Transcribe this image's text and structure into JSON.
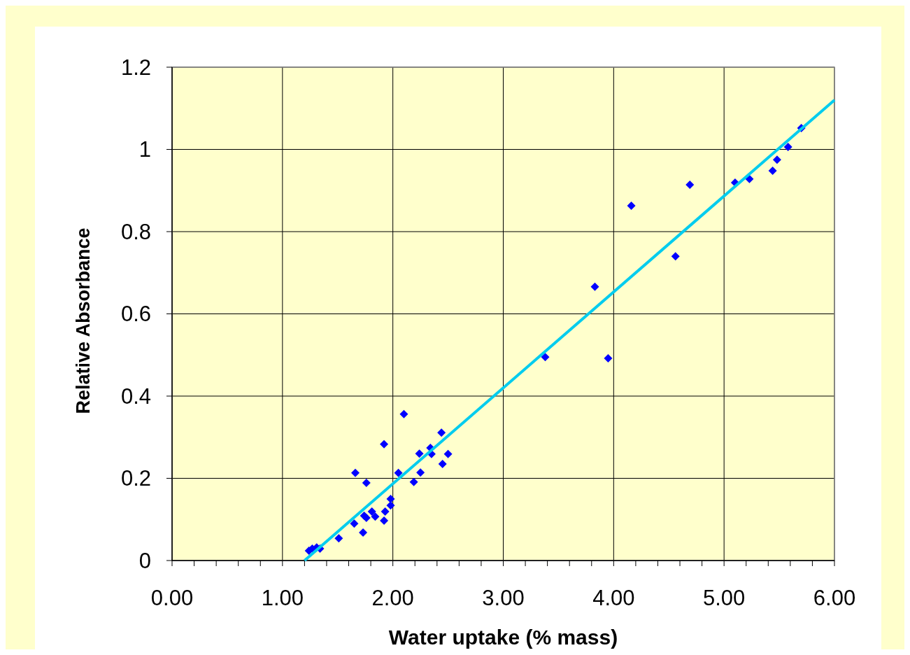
{
  "chart_data": {
    "type": "scatter",
    "xlabel": "Water uptake (% mass)",
    "ylabel": "Relative Absorbance",
    "xlim": [
      0,
      6
    ],
    "ylim": [
      0,
      1.2
    ],
    "xticks": [
      {
        "value": 0,
        "label": "0.00"
      },
      {
        "value": 0.2,
        "label": null
      },
      {
        "value": 0.4,
        "label": null
      },
      {
        "value": 0.6,
        "label": null
      },
      {
        "value": 0.8,
        "label": null
      },
      {
        "value": 1,
        "label": "1.00"
      },
      {
        "value": 1.2,
        "label": null
      },
      {
        "value": 1.4,
        "label": null
      },
      {
        "value": 1.6,
        "label": null
      },
      {
        "value": 1.8,
        "label": null
      },
      {
        "value": 2,
        "label": "2.00"
      },
      {
        "value": 2.2,
        "label": null
      },
      {
        "value": 2.4,
        "label": null
      },
      {
        "value": 2.6,
        "label": null
      },
      {
        "value": 2.8,
        "label": null
      },
      {
        "value": 3,
        "label": "3.00"
      },
      {
        "value": 3.2,
        "label": null
      },
      {
        "value": 3.4,
        "label": null
      },
      {
        "value": 3.6,
        "label": null
      },
      {
        "value": 3.8,
        "label": null
      },
      {
        "value": 4,
        "label": "4.00"
      },
      {
        "value": 4.2,
        "label": null
      },
      {
        "value": 4.4,
        "label": null
      },
      {
        "value": 4.6,
        "label": null
      },
      {
        "value": 4.8,
        "label": null
      },
      {
        "value": 5,
        "label": "5.00"
      },
      {
        "value": 5.2,
        "label": null
      },
      {
        "value": 5.4,
        "label": null
      },
      {
        "value": 5.6,
        "label": null
      },
      {
        "value": 5.8,
        "label": null
      },
      {
        "value": 6,
        "label": "6.00"
      }
    ],
    "yticks": [
      0,
      0.2,
      0.4,
      0.6,
      0.8,
      1,
      1.2
    ],
    "grid": true,
    "marker": "diamond",
    "series": [
      {
        "color": "#0000ff",
        "x": [
          1.24,
          1.27,
          1.31,
          1.34,
          1.51,
          1.65,
          1.66,
          1.73,
          1.74,
          1.76,
          1.76,
          1.81,
          1.84,
          1.92,
          1.92,
          1.93,
          1.98,
          1.98,
          2.05,
          2.1,
          2.19,
          2.25,
          2.24,
          2.34,
          2.35,
          2.44,
          2.45,
          2.5,
          3.38,
          3.83,
          3.95,
          4.16,
          4.56,
          4.69,
          5.1,
          5.23,
          5.44,
          5.48,
          5.58,
          5.7
        ],
        "values": [
          0.024,
          0.029,
          0.032,
          0.029,
          0.054,
          0.09,
          0.213,
          0.068,
          0.109,
          0.189,
          0.104,
          0.119,
          0.107,
          0.097,
          0.283,
          0.119,
          0.15,
          0.134,
          0.213,
          0.356,
          0.191,
          0.214,
          0.26,
          0.274,
          0.259,
          0.311,
          0.235,
          0.259,
          0.495,
          0.666,
          0.492,
          0.863,
          0.74,
          0.914,
          0.919,
          0.928,
          0.948,
          0.975,
          1.006,
          1.052
        ]
      },
      {
        "type": "line",
        "color": "#00ccee",
        "marker": "none",
        "line_style": "solid",
        "x": [
          1.2,
          6
        ],
        "values": [
          0,
          1.12
        ]
      }
    ]
  }
}
